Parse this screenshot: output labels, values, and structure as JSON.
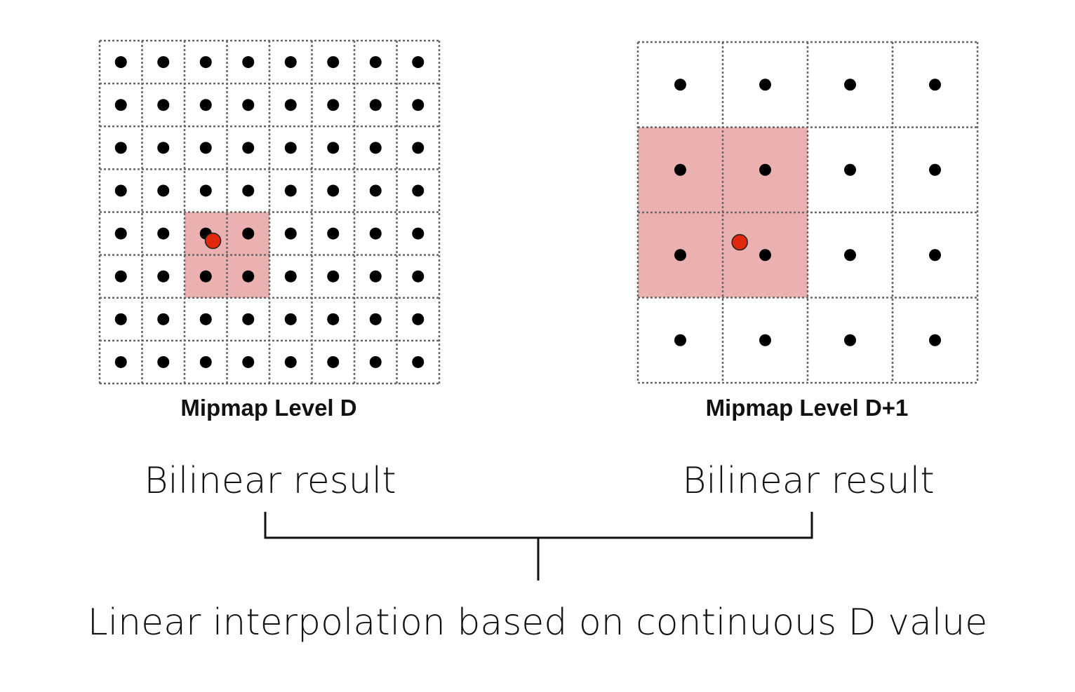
{
  "colors": {
    "background": "#ffffff",
    "highlight": "#ebb1b0",
    "sample_point": "#e0280f",
    "texel_dot": "#000000"
  },
  "left_grid": {
    "caption": "Mipmap Level D",
    "cols": 8,
    "rows": 8,
    "highlight": {
      "col": 2,
      "row": 4,
      "cols": 2,
      "rows": 2
    },
    "sample": {
      "u": 2.67,
      "v": 4.67
    }
  },
  "right_grid": {
    "caption": "Mipmap Level D+1",
    "cols": 4,
    "rows": 4,
    "highlight": {
      "col": 0,
      "row": 1,
      "cols": 2,
      "rows": 2
    },
    "sample": {
      "u": 1.2,
      "v": 2.35
    }
  },
  "labels": {
    "bilinear_left": "Bilinear result",
    "bilinear_right": "Bilinear result",
    "bottom": "Linear interpolation based on continuous D value"
  }
}
